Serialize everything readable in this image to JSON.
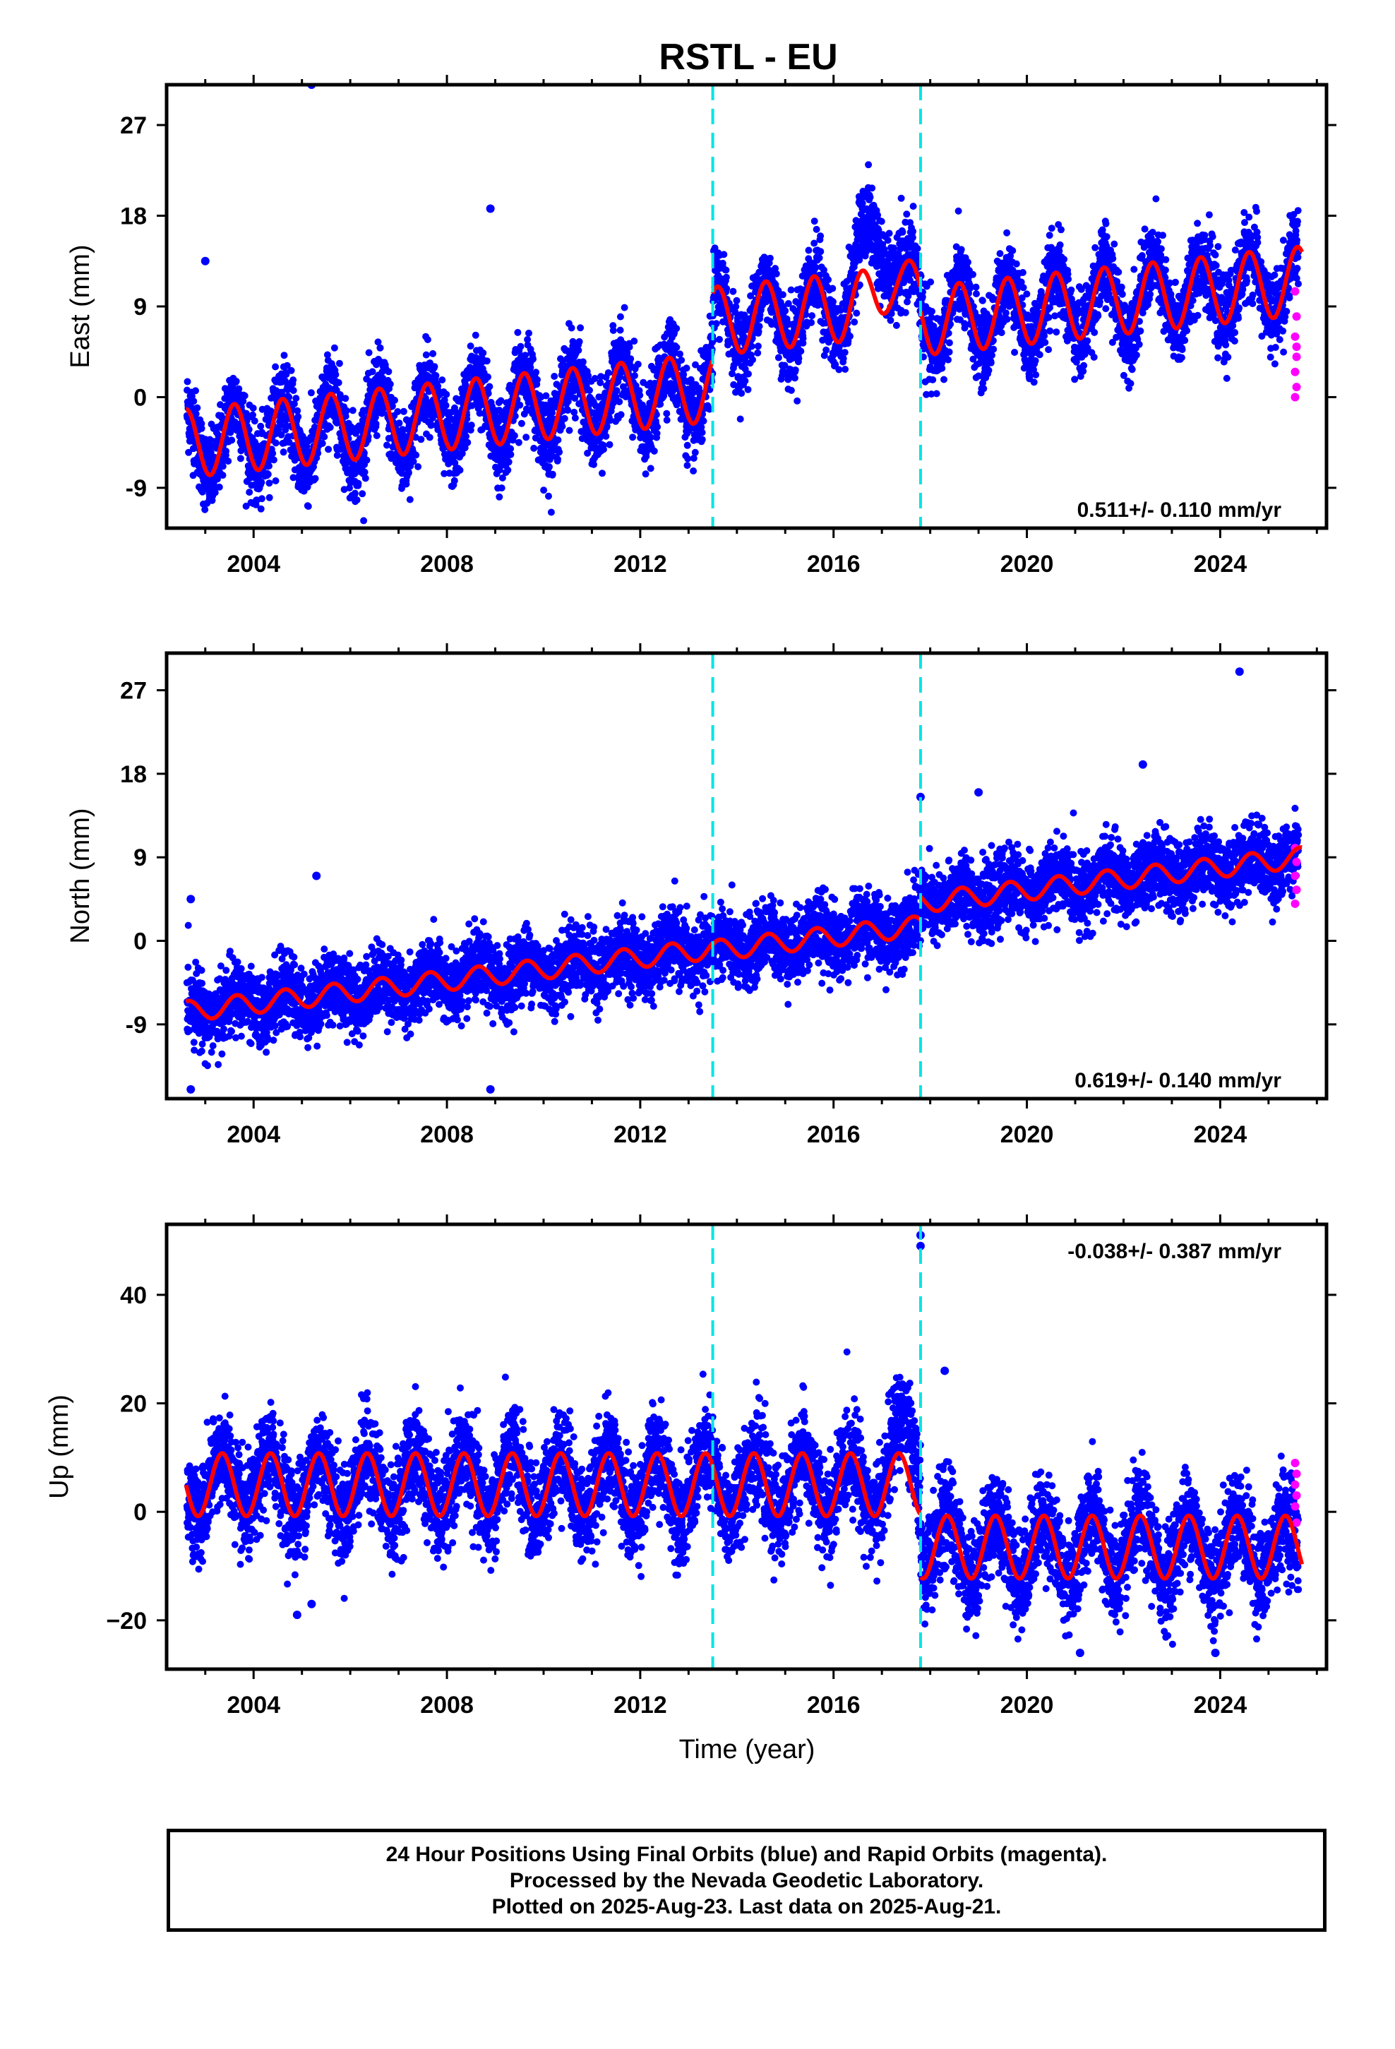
{
  "chart_data": {
    "title": "RSTL - EU",
    "type": "scatter",
    "xlabel": "Time (year)",
    "xlim": [
      2002.2,
      2026.2
    ],
    "xticks": [
      2004,
      2008,
      2012,
      2016,
      2020,
      2024
    ],
    "events": [
      2013.5,
      2017.8
    ],
    "colors": {
      "final": "#0000ff",
      "rapid": "#ff00ff",
      "model": "#ff0000",
      "event": "#00e5e5"
    },
    "series_names": [
      "Final Orbits (blue)",
      "Rapid Orbits (magenta)"
    ],
    "panels": [
      {
        "id": "east",
        "ylabel": "East (mm)",
        "ylim": [
          -13,
          31
        ],
        "yticks": [
          27,
          18,
          9,
          0,
          -9
        ],
        "ytick_labels": [
          "27",
          "18",
          "9",
          "0",
          "-9"
        ],
        "rate": "0.511+/- 0.110 mm/yr",
        "rate_pos": "bottom-right",
        "segments": [
          {
            "start": 2002.6,
            "end": 2013.5,
            "off0": -4.6,
            "v": 0.511
          },
          {
            "start": 2013.5,
            "end": 2017.8,
            "off0": 1.95,
            "v": 0.511
          },
          {
            "start": 2017.8,
            "end": 2025.7,
            "off0": -0.25,
            "v": 0.511
          }
        ],
        "annual_amp": 3.4,
        "phase": 0.35,
        "noise": 2.0,
        "outliers": [
          [
            2005.2,
            31
          ],
          [
            2008.9,
            18.7
          ],
          [
            2003.0,
            13.5
          ]
        ],
        "bump": {
          "center": 2016.9,
          "width": 0.45,
          "amp": 7.0
        },
        "rapid_values": [
          10.5,
          8,
          6,
          4,
          2.5,
          1,
          0,
          5
        ]
      },
      {
        "id": "north",
        "ylabel": "North (mm)",
        "ylim": [
          -17,
          31
        ],
        "yticks": [
          27,
          18,
          9,
          0,
          -9
        ],
        "ytick_labels": [
          "27",
          "18",
          "9",
          "0",
          "-9"
        ],
        "rate": "0.619+/- 0.140 mm/yr",
        "rate_pos": "bottom-right",
        "segments": [
          {
            "start": 2002.6,
            "end": 2013.5,
            "off0": -7.6,
            "v": 0.619
          },
          {
            "start": 2013.5,
            "end": 2017.8,
            "off0": -7.8,
            "v": 0.619
          },
          {
            "start": 2017.8,
            "end": 2025.7,
            "off0": -5.3,
            "v": 0.619
          }
        ],
        "annual_amp": 1.1,
        "phase": 0.4,
        "noise": 1.9,
        "outliers": [
          [
            2002.7,
            4.5
          ],
          [
            2002.7,
            -16
          ],
          [
            2005.3,
            7
          ],
          [
            2008.9,
            -16
          ],
          [
            2017.8,
            15.5
          ],
          [
            2024.4,
            29
          ],
          [
            2022.4,
            19
          ],
          [
            2019.0,
            16
          ]
        ],
        "bump": null,
        "rapid_values": [
          10,
          8.5,
          7,
          5.5,
          4
        ]
      },
      {
        "id": "up",
        "ylabel": "Up (mm)",
        "ylim": [
          -29,
          53
        ],
        "yticks": [
          40,
          20,
          0,
          -20
        ],
        "ytick_labels": [
          "40",
          "20",
          "0",
          "−20"
        ],
        "rate": "-0.038+/- 0.387 mm/yr",
        "rate_pos": "top-right",
        "segments": [
          {
            "start": 2002.6,
            "end": 2017.8,
            "off0": 5.0,
            "v": 0.0
          },
          {
            "start": 2017.8,
            "end": 2025.7,
            "off0": -6.5,
            "v": 0.0
          }
        ],
        "annual_amp": 5.8,
        "phase": 0.1,
        "noise": 4.5,
        "outliers": [
          [
            2017.8,
            51
          ],
          [
            2017.8,
            49
          ],
          [
            2004.9,
            -19
          ],
          [
            2005.2,
            -17
          ],
          [
            2021.1,
            -26
          ],
          [
            2023.9,
            -26
          ],
          [
            2018.3,
            26
          ]
        ],
        "bump": {
          "center": 2017.5,
          "width": 0.35,
          "amp": 8.0
        },
        "rapid_values": [
          9,
          7,
          5,
          3,
          1,
          -2
        ]
      }
    ]
  },
  "footer": {
    "line1": "24 Hour Positions Using Final Orbits (blue) and Rapid Orbits (magenta).",
    "line2": "Processed by the Nevada Geodetic Laboratory.",
    "line3": "Plotted on 2025-Aug-23. Last data on 2025-Aug-21."
  }
}
